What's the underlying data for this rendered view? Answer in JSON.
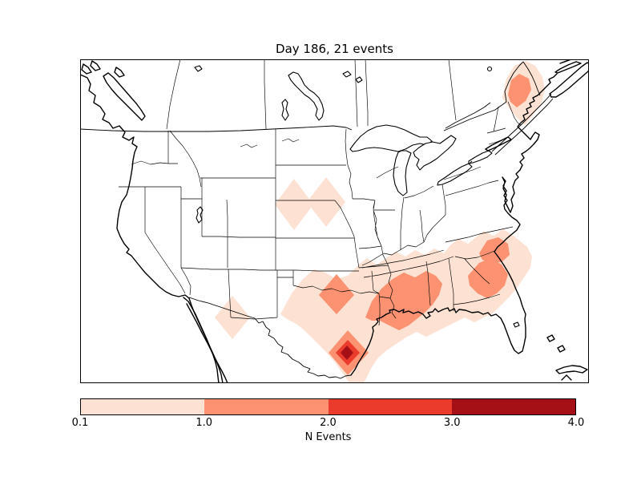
{
  "figure": {
    "title": "Day 186, 21 events",
    "background_color": "#ffffff"
  },
  "map": {
    "frame_color": "#000000",
    "land_color": "#ffffff",
    "coastline_color": "#000000",
    "state_border_color": "#000000",
    "description": "Continental United States with southern Canada and northern Mexico, Lambert-conformal style basemap with state and province borders"
  },
  "colorbar": {
    "label": "N Events",
    "ticks": [
      "0.1",
      "1.0",
      "2.0",
      "3.0",
      "4.0"
    ],
    "levels": [
      0.1,
      1.0,
      2.0,
      3.0,
      4.0
    ],
    "spacing": "uniform",
    "segment_colors": [
      "#fde1d2",
      "#fc9272",
      "#ea3b2c",
      "#a41016"
    ],
    "outline_color": "#000000"
  },
  "chart_data": {
    "type": "heatmap",
    "subtype": "filled-contour-map",
    "title": "Day 186, 21 events",
    "day_number": 186,
    "total_events": 21,
    "colorbar_label": "N Events",
    "contour_levels": [
      0.1,
      1.0,
      2.0,
      3.0,
      4.0
    ],
    "level_colors": [
      "#fde1d2",
      "#fc9272",
      "#ea3b2c",
      "#a41016"
    ],
    "legend_position": "bottom-horizontal",
    "hotspots": [
      {
        "location": "South Texas near Rio Grande",
        "n_events_bin": "3.0-4.0 (peak)"
      },
      {
        "location": "Texas-Oklahoma Red River area",
        "n_events_bin": "1.0-2.0"
      },
      {
        "location": "Gulf Coast Louisiana-Mississippi-Alabama",
        "n_events_bin": "1.0-2.0"
      },
      {
        "location": "Coastal Georgia / South Carolina",
        "n_events_bin": "1.0-2.0"
      },
      {
        "location": "Coastal North Carolina",
        "n_events_bin": "1.0-2.0"
      },
      {
        "location": "Maine, northern New England",
        "n_events_bin": "1.0-2.0"
      },
      {
        "location": "Nebraska-South Dakota border, two cells",
        "n_events_bin": "0.1-1.0"
      },
      {
        "location": "Arizona-New Mexico border",
        "n_events_bin": "0.1-1.0"
      },
      {
        "location": "Broad south-central and southeastern US",
        "n_events_bin": "0.1-1.0"
      }
    ]
  }
}
